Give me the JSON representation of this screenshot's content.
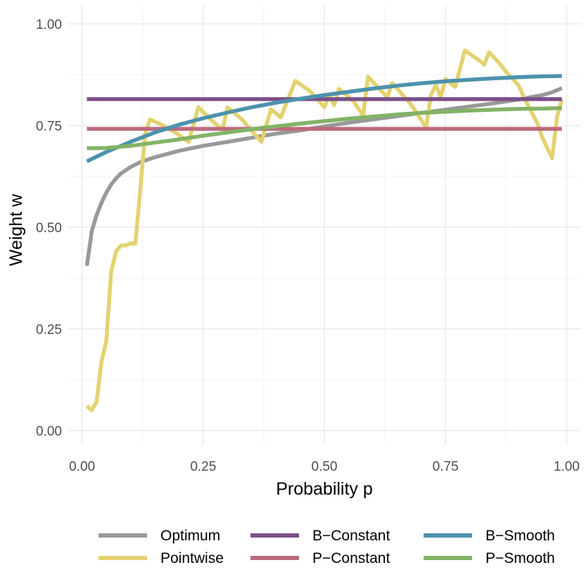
{
  "chart_data": {
    "type": "line",
    "title": "",
    "xlabel": "Probability p",
    "ylabel": "Weight w",
    "xlim": [
      -0.03,
      1.03
    ],
    "ylim": [
      -0.035,
      1.045
    ],
    "x_ticks": [
      0.0,
      0.25,
      0.5,
      0.75,
      1.0
    ],
    "x_tick_labels": [
      "0.00",
      "0.25",
      "0.50",
      "0.75",
      "1.00"
    ],
    "y_ticks": [
      0.0,
      0.25,
      0.5,
      0.75,
      1.0
    ],
    "y_tick_labels": [
      "0.00",
      "0.25",
      "0.50",
      "0.75",
      "1.00"
    ],
    "grid": true,
    "legend_position": "bottom",
    "series": [
      {
        "name": "Optimum",
        "color": "#999999",
        "points": [
          [
            0.01,
            0.405
          ],
          [
            0.02,
            0.49
          ],
          [
            0.03,
            0.53
          ],
          [
            0.04,
            0.56
          ],
          [
            0.05,
            0.585
          ],
          [
            0.06,
            0.605
          ],
          [
            0.07,
            0.62
          ],
          [
            0.08,
            0.632
          ],
          [
            0.1,
            0.648
          ],
          [
            0.12,
            0.66
          ],
          [
            0.15,
            0.672
          ],
          [
            0.2,
            0.688
          ],
          [
            0.25,
            0.7
          ],
          [
            0.3,
            0.71
          ],
          [
            0.35,
            0.72
          ],
          [
            0.4,
            0.73
          ],
          [
            0.45,
            0.738
          ],
          [
            0.5,
            0.748
          ],
          [
            0.55,
            0.757
          ],
          [
            0.6,
            0.765
          ],
          [
            0.65,
            0.773
          ],
          [
            0.7,
            0.781
          ],
          [
            0.75,
            0.789
          ],
          [
            0.8,
            0.797
          ],
          [
            0.85,
            0.805
          ],
          [
            0.9,
            0.814
          ],
          [
            0.95,
            0.825
          ],
          [
            0.97,
            0.832
          ],
          [
            0.99,
            0.842
          ]
        ]
      },
      {
        "name": "Pointwise",
        "color": "#E3D26F",
        "points": [
          [
            0.01,
            0.06
          ],
          [
            0.02,
            0.05
          ],
          [
            0.03,
            0.07
          ],
          [
            0.04,
            0.17
          ],
          [
            0.05,
            0.22
          ],
          [
            0.06,
            0.39
          ],
          [
            0.07,
            0.44
          ],
          [
            0.08,
            0.455
          ],
          [
            0.09,
            0.455
          ],
          [
            0.1,
            0.46
          ],
          [
            0.11,
            0.46
          ],
          [
            0.12,
            0.59
          ],
          [
            0.13,
            0.73
          ],
          [
            0.14,
            0.765
          ],
          [
            0.16,
            0.755
          ],
          [
            0.19,
            0.735
          ],
          [
            0.22,
            0.71
          ],
          [
            0.24,
            0.795
          ],
          [
            0.27,
            0.76
          ],
          [
            0.29,
            0.74
          ],
          [
            0.3,
            0.795
          ],
          [
            0.33,
            0.765
          ],
          [
            0.37,
            0.71
          ],
          [
            0.39,
            0.79
          ],
          [
            0.41,
            0.77
          ],
          [
            0.44,
            0.86
          ],
          [
            0.47,
            0.835
          ],
          [
            0.5,
            0.795
          ],
          [
            0.51,
            0.825
          ],
          [
            0.52,
            0.8
          ],
          [
            0.53,
            0.84
          ],
          [
            0.56,
            0.81
          ],
          [
            0.58,
            0.775
          ],
          [
            0.59,
            0.87
          ],
          [
            0.63,
            0.82
          ],
          [
            0.64,
            0.855
          ],
          [
            0.68,
            0.8
          ],
          [
            0.71,
            0.745
          ],
          [
            0.72,
            0.825
          ],
          [
            0.73,
            0.85
          ],
          [
            0.74,
            0.82
          ],
          [
            0.75,
            0.865
          ],
          [
            0.77,
            0.845
          ],
          [
            0.79,
            0.935
          ],
          [
            0.82,
            0.91
          ],
          [
            0.83,
            0.9
          ],
          [
            0.84,
            0.93
          ],
          [
            0.86,
            0.905
          ],
          [
            0.88,
            0.875
          ],
          [
            0.9,
            0.85
          ],
          [
            0.92,
            0.8
          ],
          [
            0.94,
            0.755
          ],
          [
            0.95,
            0.72
          ],
          [
            0.97,
            0.67
          ],
          [
            0.98,
            0.77
          ],
          [
            0.99,
            0.815
          ]
        ]
      },
      {
        "name": "B−Constant",
        "color": "#7B4F89",
        "points": [
          [
            0.01,
            0.815
          ],
          [
            0.99,
            0.815
          ]
        ]
      },
      {
        "name": "P−Constant",
        "color": "#BC6A7E",
        "points": [
          [
            0.01,
            0.742
          ],
          [
            0.99,
            0.742
          ]
        ]
      },
      {
        "name": "B−Smooth",
        "color": "#4D92AD",
        "points": [
          [
            0.01,
            0.662
          ],
          [
            0.05,
            0.685
          ],
          [
            0.1,
            0.71
          ],
          [
            0.15,
            0.733
          ],
          [
            0.2,
            0.752
          ],
          [
            0.25,
            0.768
          ],
          [
            0.3,
            0.782
          ],
          [
            0.35,
            0.795
          ],
          [
            0.4,
            0.806
          ],
          [
            0.45,
            0.816
          ],
          [
            0.5,
            0.825
          ],
          [
            0.55,
            0.833
          ],
          [
            0.6,
            0.841
          ],
          [
            0.65,
            0.848
          ],
          [
            0.7,
            0.854
          ],
          [
            0.75,
            0.859
          ],
          [
            0.8,
            0.863
          ],
          [
            0.85,
            0.866
          ],
          [
            0.9,
            0.869
          ],
          [
            0.95,
            0.871
          ],
          [
            0.99,
            0.872
          ]
        ]
      },
      {
        "name": "P−Smooth",
        "color": "#82B366",
        "points": [
          [
            0.01,
            0.694
          ],
          [
            0.05,
            0.695
          ],
          [
            0.1,
            0.7
          ],
          [
            0.15,
            0.708
          ],
          [
            0.2,
            0.716
          ],
          [
            0.25,
            0.725
          ],
          [
            0.3,
            0.733
          ],
          [
            0.35,
            0.741
          ],
          [
            0.4,
            0.748
          ],
          [
            0.45,
            0.755
          ],
          [
            0.5,
            0.761
          ],
          [
            0.55,
            0.767
          ],
          [
            0.6,
            0.772
          ],
          [
            0.65,
            0.777
          ],
          [
            0.7,
            0.781
          ],
          [
            0.75,
            0.784
          ],
          [
            0.8,
            0.787
          ],
          [
            0.85,
            0.789
          ],
          [
            0.9,
            0.791
          ],
          [
            0.95,
            0.792
          ],
          [
            0.99,
            0.793
          ]
        ]
      }
    ],
    "legend": {
      "columns": [
        [
          "Optimum",
          "Pointwise"
        ],
        [
          "B−Constant",
          "P−Constant"
        ],
        [
          "B−Smooth",
          "P−Smooth"
        ]
      ]
    }
  }
}
